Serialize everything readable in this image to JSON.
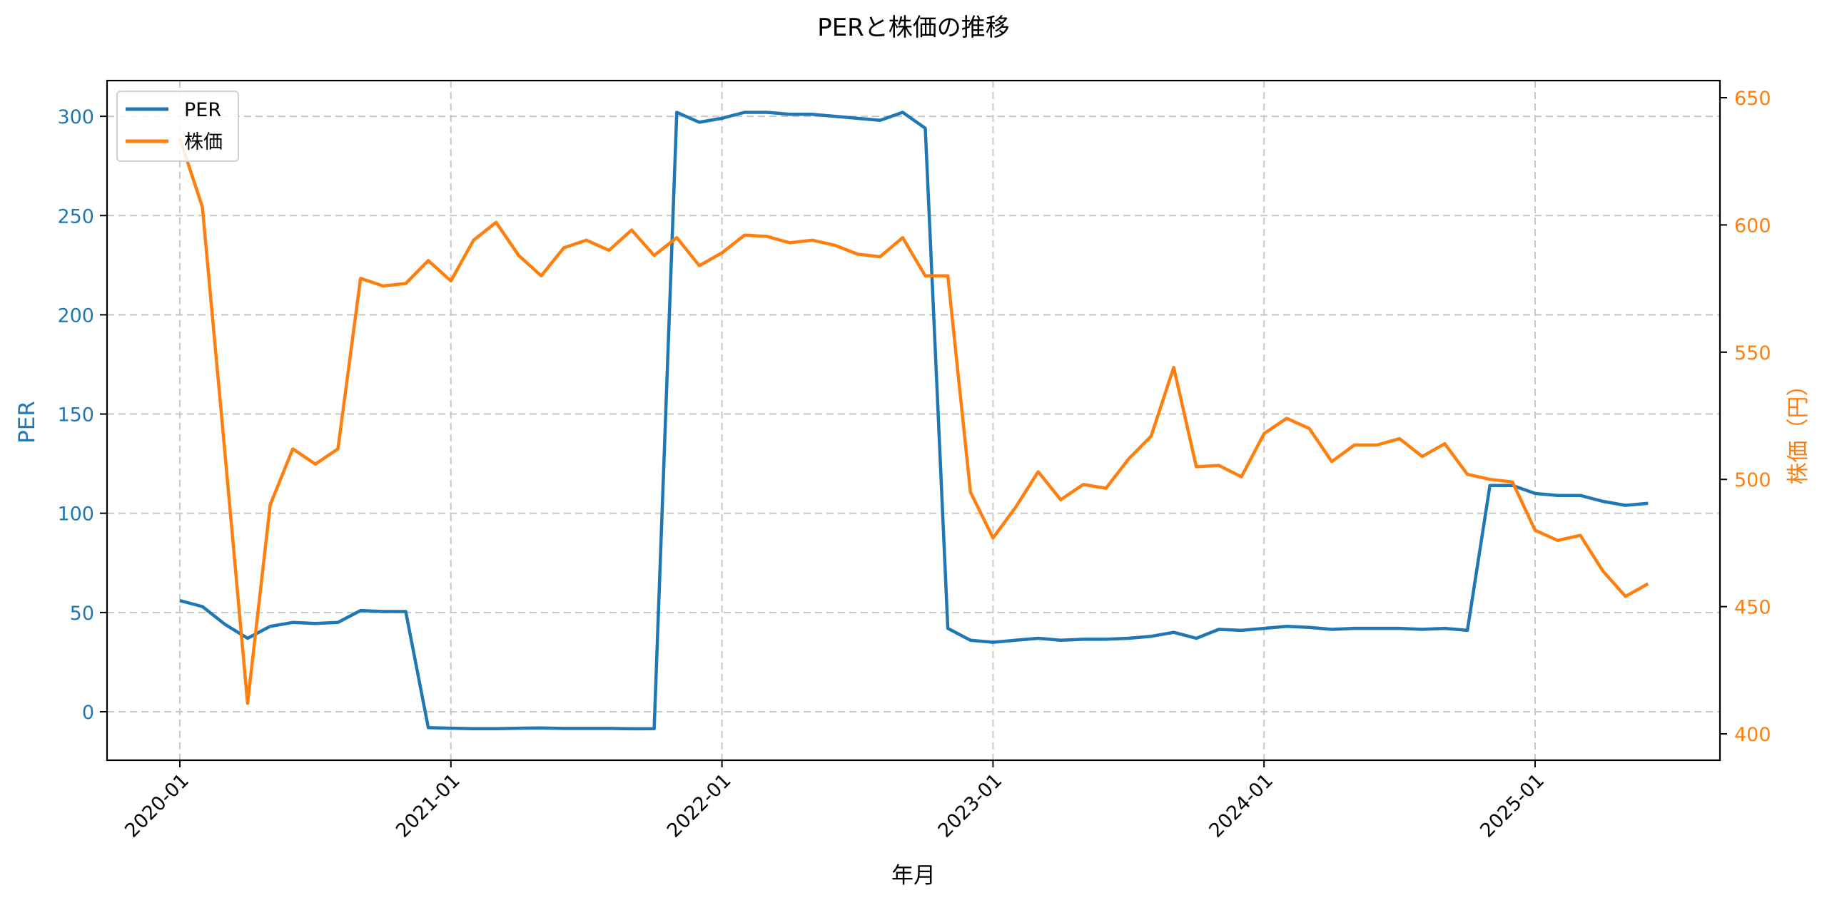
{
  "chart_data": {
    "type": "line",
    "title": "PERと株価の推移",
    "xlabel": "年月",
    "ylabel": "PER",
    "ylabel_right": "株価（円）",
    "ylim": [
      -25,
      318
    ],
    "ylim_right": [
      392,
      656
    ],
    "grid": true,
    "legend_position": "upper left",
    "x_ticks": [
      "2020-01",
      "2021-01",
      "2022-01",
      "2023-01",
      "2024-01",
      "2025-01"
    ],
    "y_ticks": [
      0,
      50,
      100,
      150,
      200,
      250,
      300
    ],
    "y_ticks_right": [
      400,
      450,
      500,
      550,
      600,
      650
    ],
    "x": [
      "2020-01",
      "2020-02",
      "2020-03",
      "2020-04",
      "2020-05",
      "2020-06",
      "2020-07",
      "2020-08",
      "2020-09",
      "2020-10",
      "2020-11",
      "2020-12",
      "2021-01",
      "2021-02",
      "2021-03",
      "2021-04",
      "2021-05",
      "2021-06",
      "2021-07",
      "2021-08",
      "2021-09",
      "2021-10",
      "2021-11",
      "2021-12",
      "2022-01",
      "2022-02",
      "2022-03",
      "2022-04",
      "2022-05",
      "2022-06",
      "2022-07",
      "2022-08",
      "2022-09",
      "2022-10",
      "2022-11",
      "2022-12",
      "2023-01",
      "2023-02",
      "2023-03",
      "2023-04",
      "2023-05",
      "2023-06",
      "2023-07",
      "2023-08",
      "2023-09",
      "2023-10",
      "2023-11",
      "2023-12",
      "2024-01",
      "2024-02",
      "2024-03",
      "2024-04",
      "2024-05",
      "2024-06",
      "2024-07",
      "2024-08",
      "2024-09",
      "2024-10",
      "2024-11",
      "2024-12",
      "2025-01",
      "2025-02",
      "2025-03",
      "2025-04",
      "2025-05",
      "2025-06"
    ],
    "series": [
      {
        "name": "PER",
        "axis": "left",
        "color": "#1f77b4",
        "values": [
          56,
          53,
          44,
          37,
          43,
          45,
          44.5,
          45,
          51,
          50.5,
          50.5,
          -8,
          -8.3,
          -8.5,
          -8.5,
          -8.3,
          -8.2,
          -8.4,
          -8.4,
          -8.4,
          -8.6,
          -8.5,
          302,
          297,
          299,
          302,
          302,
          301,
          301,
          300,
          299,
          298,
          302,
          294,
          42,
          36,
          35,
          36,
          37,
          36,
          36.5,
          36.5,
          37,
          38,
          40,
          37,
          41.5,
          41,
          42,
          43,
          42.5,
          41.5,
          42,
          42,
          42,
          41.5,
          42,
          41,
          114,
          114,
          110,
          109,
          109,
          106,
          104,
          105
        ]
      },
      {
        "name": "株価",
        "axis": "right",
        "color": "#ff7f0e",
        "values": [
          634,
          607,
          510,
          412,
          490,
          512,
          506,
          512,
          579,
          576,
          577,
          586,
          578,
          594,
          601,
          588,
          580,
          591,
          594,
          590,
          598,
          588,
          595,
          584,
          589,
          596,
          595.5,
          593,
          594,
          592,
          588.5,
          587.5,
          595,
          580,
          580,
          495,
          477,
          489,
          503,
          492,
          498,
          496.5,
          508,
          517,
          544,
          505,
          505.5,
          501,
          518,
          524,
          520,
          507,
          513.5,
          513.5,
          516,
          509,
          514,
          502,
          500,
          499,
          480,
          476,
          478,
          464,
          454,
          459
        ]
      }
    ]
  },
  "colors": {
    "per": "#1f77b4",
    "price": "#ff7f0e",
    "grid": "#c8c8c8",
    "axis": "#000000"
  }
}
